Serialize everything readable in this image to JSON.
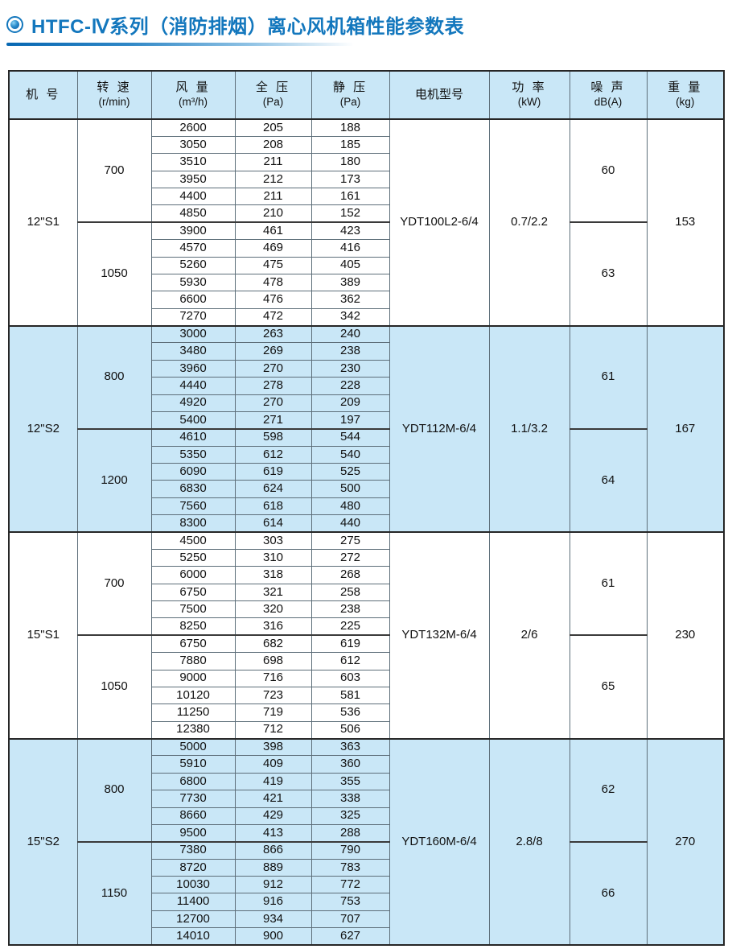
{
  "title": "HTFC-Ⅳ系列（消防排烟）离心风机箱性能参数表",
  "accent_color": "#1377bd",
  "shade_color": "#c9e7f7",
  "table": {
    "headers": [
      {
        "line1": "机 号",
        "line2": ""
      },
      {
        "line1": "转 速",
        "line2": "(r/min)"
      },
      {
        "line1": "风 量",
        "line2": "(m³/h)"
      },
      {
        "line1": "全 压",
        "line2": "(Pa)"
      },
      {
        "line1": "静 压",
        "line2": "(Pa)"
      },
      {
        "line1": "电机型号",
        "line2": ""
      },
      {
        "line1": "功 率",
        "line2": "(kW)"
      },
      {
        "line1": "噪 声",
        "line2": "dB(A)"
      },
      {
        "line1": "重 量",
        "line2": "(kg)"
      }
    ],
    "groups": [
      {
        "model": "12\"S1",
        "motor": "YDT100L2-6/4",
        "power": "0.7/2.2",
        "weight": "153",
        "shaded": false,
        "speed_blocks": [
          {
            "speed": "700",
            "noise": "60",
            "rows": [
              [
                "2600",
                "205",
                "188"
              ],
              [
                "3050",
                "208",
                "185"
              ],
              [
                "3510",
                "211",
                "180"
              ],
              [
                "3950",
                "212",
                "173"
              ],
              [
                "4400",
                "211",
                "161"
              ],
              [
                "4850",
                "210",
                "152"
              ]
            ]
          },
          {
            "speed": "1050",
            "noise": "63",
            "rows": [
              [
                "3900",
                "461",
                "423"
              ],
              [
                "4570",
                "469",
                "416"
              ],
              [
                "5260",
                "475",
                "405"
              ],
              [
                "5930",
                "478",
                "389"
              ],
              [
                "6600",
                "476",
                "362"
              ],
              [
                "7270",
                "472",
                "342"
              ]
            ]
          }
        ]
      },
      {
        "model": "12\"S2",
        "motor": "YDT112M-6/4",
        "power": "1.1/3.2",
        "weight": "167",
        "shaded": true,
        "speed_blocks": [
          {
            "speed": "800",
            "noise": "61",
            "rows": [
              [
                "3000",
                "263",
                "240"
              ],
              [
                "3480",
                "269",
                "238"
              ],
              [
                "3960",
                "270",
                "230"
              ],
              [
                "4440",
                "278",
                "228"
              ],
              [
                "4920",
                "270",
                "209"
              ],
              [
                "5400",
                "271",
                "197"
              ]
            ]
          },
          {
            "speed": "1200",
            "noise": "64",
            "rows": [
              [
                "4610",
                "598",
                "544"
              ],
              [
                "5350",
                "612",
                "540"
              ],
              [
                "6090",
                "619",
                "525"
              ],
              [
                "6830",
                "624",
                "500"
              ],
              [
                "7560",
                "618",
                "480"
              ],
              [
                "8300",
                "614",
                "440"
              ]
            ]
          }
        ]
      },
      {
        "model": "15\"S1",
        "motor": "YDT132M-6/4",
        "power": "2/6",
        "weight": "230",
        "shaded": false,
        "speed_blocks": [
          {
            "speed": "700",
            "noise": "61",
            "rows": [
              [
                "4500",
                "303",
                "275"
              ],
              [
                "5250",
                "310",
                "272"
              ],
              [
                "6000",
                "318",
                "268"
              ],
              [
                "6750",
                "321",
                "258"
              ],
              [
                "7500",
                "320",
                "238"
              ],
              [
                "8250",
                "316",
                "225"
              ]
            ]
          },
          {
            "speed": "1050",
            "noise": "65",
            "rows": [
              [
                "6750",
                "682",
                "619"
              ],
              [
                "7880",
                "698",
                "612"
              ],
              [
                "9000",
                "716",
                "603"
              ],
              [
                "10120",
                "723",
                "581"
              ],
              [
                "11250",
                "719",
                "536"
              ],
              [
                "12380",
                "712",
                "506"
              ]
            ]
          }
        ]
      },
      {
        "model": "15\"S2",
        "motor": "YDT160M-6/4",
        "power": "2.8/8",
        "weight": "270",
        "shaded": true,
        "speed_blocks": [
          {
            "speed": "800",
            "noise": "62",
            "rows": [
              [
                "5000",
                "398",
                "363"
              ],
              [
                "5910",
                "409",
                "360"
              ],
              [
                "6800",
                "419",
                "355"
              ],
              [
                "7730",
                "421",
                "338"
              ],
              [
                "8660",
                "429",
                "325"
              ],
              [
                "9500",
                "413",
                "288"
              ]
            ]
          },
          {
            "speed": "1150",
            "noise": "66",
            "rows": [
              [
                "7380",
                "866",
                "790"
              ],
              [
                "8720",
                "889",
                "783"
              ],
              [
                "10030",
                "912",
                "772"
              ],
              [
                "11400",
                "916",
                "753"
              ],
              [
                "12700",
                "934",
                "707"
              ],
              [
                "14010",
                "900",
                "627"
              ]
            ]
          }
        ]
      }
    ]
  }
}
